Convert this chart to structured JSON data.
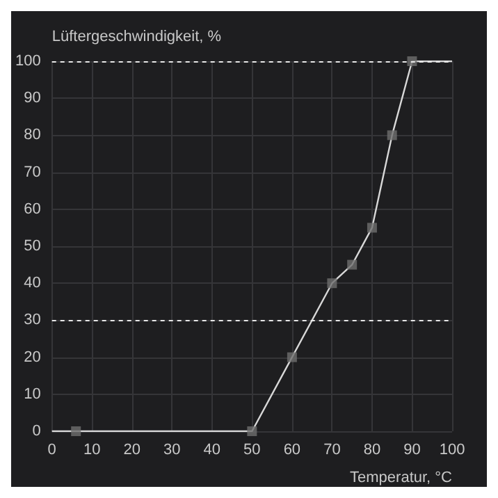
{
  "chart_data": {
    "type": "line",
    "xlabel": "Temperatur, °C",
    "ylabel": "Lüftergeschwindigkeit, %",
    "xlim": [
      0,
      100
    ],
    "ylim": [
      0,
      100
    ],
    "xticks": [
      0,
      10,
      20,
      30,
      40,
      50,
      60,
      70,
      80,
      90,
      100
    ],
    "yticks": [
      0,
      10,
      20,
      30,
      40,
      50,
      60,
      70,
      80,
      90,
      100
    ],
    "grid": true,
    "series": [
      {
        "color": "#d8d8d8",
        "marker": "none",
        "x": [
          0,
          6,
          50,
          60,
          70,
          75,
          80,
          85,
          90,
          100
        ],
        "values": [
          0,
          0,
          0,
          20,
          40,
          45,
          55,
          80,
          100,
          100
        ]
      },
      {
        "type": "scatter",
        "color": "#6e6e6e",
        "marker": "square",
        "x": [
          6,
          50,
          60,
          70,
          75,
          80,
          85,
          90
        ],
        "values": [
          0,
          0,
          20,
          40,
          45,
          55,
          80,
          100
        ]
      }
    ],
    "ref_lines": [
      {
        "axis": "y",
        "value": 100,
        "color": "#e8e8e8",
        "line_style": "dashed"
      },
      {
        "axis": "y",
        "value": 30,
        "color": "#e8e8e8",
        "line_style": "dashed"
      }
    ]
  }
}
